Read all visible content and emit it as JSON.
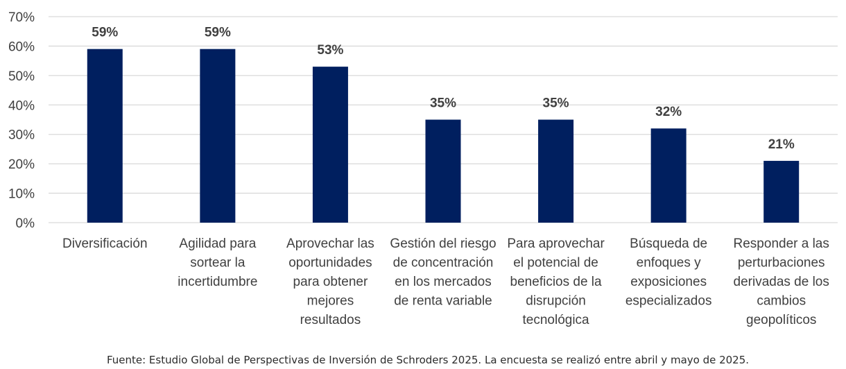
{
  "chart_data": {
    "type": "bar",
    "categories": [
      [
        "Diversificación"
      ],
      [
        "Agilidad para",
        "sortear la",
        "incertidumbre"
      ],
      [
        "Aprovechar las",
        "oportunidades",
        "para obtener",
        "mejores",
        "resultados"
      ],
      [
        "Gestión del riesgo",
        "de concentración",
        "en los mercados",
        "de renta variable"
      ],
      [
        "Para aprovechar",
        "el potencial de",
        "beneficios de la",
        "disrupción",
        "tecnológica"
      ],
      [
        "Búsqueda de",
        "enfoques y",
        "exposiciones",
        "especializados"
      ],
      [
        "Responder a las",
        "perturbaciones",
        "derivadas de los",
        "cambios",
        "geopolíticos"
      ]
    ],
    "values": [
      59,
      59,
      53,
      35,
      35,
      32,
      21
    ],
    "data_labels": [
      "59%",
      "59%",
      "53%",
      "35%",
      "35%",
      "32%",
      "21%"
    ],
    "ylim": [
      0,
      70
    ],
    "yticks": [
      0,
      10,
      20,
      30,
      40,
      50,
      60,
      70
    ],
    "ytick_labels": [
      "0%",
      "10%",
      "20%",
      "30%",
      "40%",
      "50%",
      "60%",
      "70%"
    ],
    "grid": true,
    "bar_color": "#001f5f",
    "grid_color": "#d9d9d9"
  },
  "footnote": "Fuente: Estudio Global de Perspectivas de Inversión de Schroders 2025. La encuesta se realizó entre abril y mayo de 2025."
}
